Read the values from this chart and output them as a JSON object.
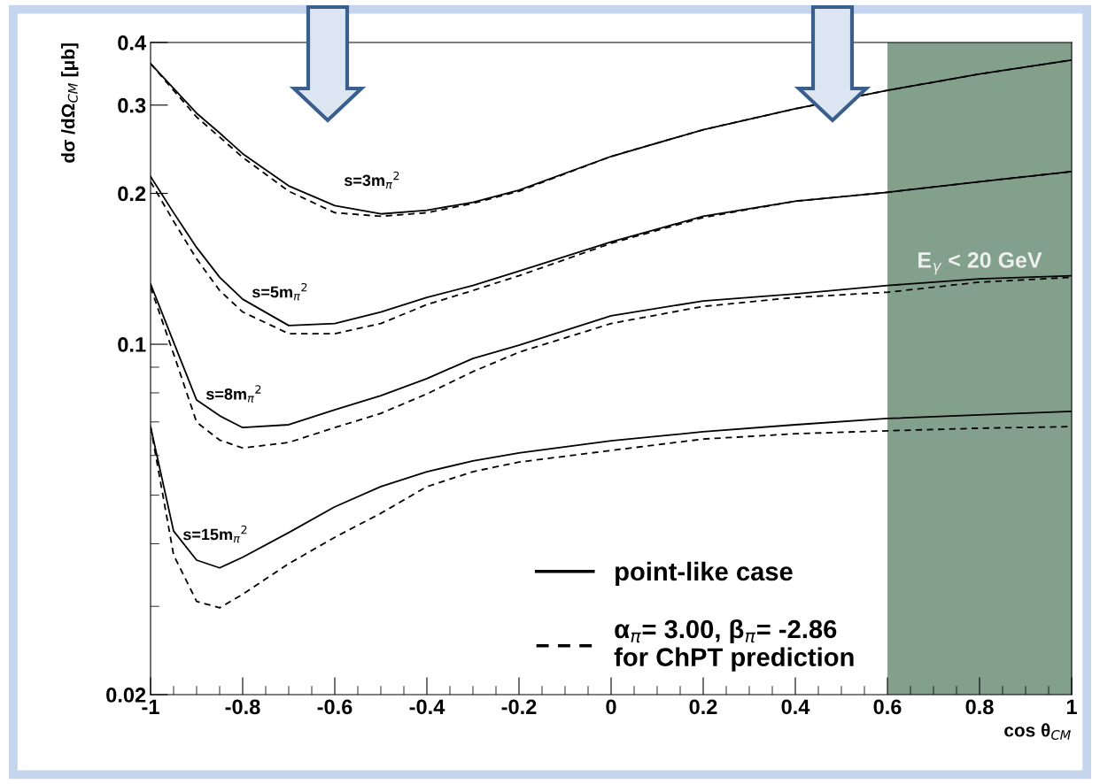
{
  "chart_data": {
    "type": "line",
    "xlabel": "cos θ$_{CM}$",
    "ylabel": "dσ /dΩ$_{CM}$ [μb]",
    "log": "y",
    "xlim": [
      -1,
      1
    ],
    "ylim": [
      0.02,
      0.4
    ],
    "xticks": [
      -1,
      {
        "value": -0.95,
        "label": null
      },
      {
        "value": -0.9,
        "label": null
      },
      {
        "value": -0.85,
        "label": null
      },
      -0.8,
      {
        "value": -0.75,
        "label": null
      },
      {
        "value": -0.7,
        "label": null
      },
      {
        "value": -0.65,
        "label": null
      },
      -0.6,
      {
        "value": -0.55,
        "label": null
      },
      {
        "value": -0.5,
        "label": null
      },
      {
        "value": -0.45,
        "label": null
      },
      -0.4,
      {
        "value": -0.35,
        "label": null
      },
      {
        "value": -0.3,
        "label": null
      },
      {
        "value": -0.25,
        "label": null
      },
      -0.2,
      {
        "value": -0.15,
        "label": null
      },
      {
        "value": -0.1,
        "label": null
      },
      {
        "value": -0.05,
        "label": null
      },
      0,
      {
        "value": 0.05,
        "label": null
      },
      {
        "value": 0.1,
        "label": null
      },
      {
        "value": 0.15,
        "label": null
      },
      0.2,
      {
        "value": 0.25,
        "label": null
      },
      {
        "value": 0.3,
        "label": null
      },
      {
        "value": 0.35,
        "label": null
      },
      0.4,
      {
        "value": 0.45,
        "label": null
      },
      {
        "value": 0.5,
        "label": null
      },
      {
        "value": 0.55,
        "label": null
      },
      0.6,
      {
        "value": 0.65,
        "label": null
      },
      {
        "value": 0.7,
        "label": null
      },
      {
        "value": 0.75,
        "label": null
      },
      0.8,
      {
        "value": 0.85,
        "label": null
      },
      {
        "value": 0.9,
        "label": null
      },
      {
        "value": 0.95,
        "label": null
      },
      1
    ],
    "yticks": [
      0.02,
      {
        "value": 0.03,
        "label": null
      },
      {
        "value": 0.04,
        "label": null
      },
      {
        "value": 0.05,
        "label": null
      },
      {
        "value": 0.06,
        "label": null
      },
      {
        "value": 0.07,
        "label": null
      },
      {
        "value": 0.08,
        "label": null
      },
      {
        "value": 0.09,
        "label": null
      },
      0.1,
      0.2,
      0.3,
      0.4
    ],
    "x": [
      -1,
      -0.95,
      -0.9,
      -0.85,
      -0.8,
      -0.7,
      -0.6,
      -0.5,
      -0.4,
      -0.3,
      -0.2,
      0,
      0.2,
      0.4,
      0.6,
      0.8,
      1
    ],
    "series": [
      {
        "name": "point-like case",
        "color": "#000000",
        "line_style": "solid",
        "values": [
          0.363,
          0.324,
          0.289,
          0.264,
          0.24,
          0.207,
          0.189,
          0.182,
          0.185,
          0.192,
          0.203,
          0.237,
          0.268,
          0.295,
          0.321,
          0.346,
          0.369
        ]
      },
      {
        "name": "α$_{π}$= 3.00, β$_{π}$= -2.86\nfor ChPT prediction",
        "color": "#000000",
        "line_style": "dashed",
        "values": [
          0.363,
          0.321,
          0.284,
          0.259,
          0.236,
          0.202,
          0.183,
          0.18,
          0.183,
          0.191,
          0.202,
          0.237,
          0.268,
          0.295,
          0.321,
          0.346,
          0.369
        ]
      },
      {
        "color": "#000000",
        "line_style": "solid",
        "values": [
          0.216,
          0.183,
          0.156,
          0.136,
          0.123,
          0.109,
          0.11,
          0.116,
          0.124,
          0.131,
          0.14,
          0.16,
          0.18,
          0.193,
          0.201,
          0.211,
          0.221
        ]
      },
      {
        "color": "#000000",
        "line_style": "dashed",
        "values": [
          0.211,
          0.176,
          0.148,
          0.128,
          0.116,
          0.105,
          0.105,
          0.11,
          0.12,
          0.128,
          0.137,
          0.159,
          0.179,
          0.193,
          0.201,
          0.211,
          0.221
        ]
      },
      {
        "color": "#000000",
        "line_style": "solid",
        "values": [
          0.132,
          0.101,
          0.0774,
          0.072,
          0.0682,
          0.0691,
          0.074,
          0.079,
          0.0854,
          0.0937,
          0.0996,
          0.114,
          0.122,
          0.126,
          0.131,
          0.135,
          0.137
        ]
      },
      {
        "color": "#000000",
        "line_style": "dashed",
        "values": [
          0.13,
          0.0957,
          0.0699,
          0.0644,
          0.0621,
          0.0637,
          0.0682,
          0.0728,
          0.0796,
          0.0882,
          0.0964,
          0.11,
          0.119,
          0.124,
          0.127,
          0.133,
          0.136
        ]
      },
      {
        "color": "#000000",
        "line_style": "solid",
        "values": [
          0.0685,
          0.0424,
          0.0371,
          0.0358,
          0.0376,
          0.0421,
          0.0474,
          0.052,
          0.0557,
          0.0585,
          0.0607,
          0.0642,
          0.0669,
          0.0691,
          0.0711,
          0.0723,
          0.0735
        ]
      },
      {
        "color": "#000000",
        "line_style": "dashed",
        "values": [
          0.0685,
          0.038,
          0.0307,
          0.0298,
          0.0317,
          0.0365,
          0.0412,
          0.046,
          0.052,
          0.0557,
          0.0582,
          0.0614,
          0.0647,
          0.0663,
          0.0672,
          0.068,
          0.0685
        ]
      }
    ],
    "bands": [
      {
        "axis": "x",
        "from": 0.6,
        "to": 1,
        "label": "E$_{γ}$ < 20 GeV",
        "color": "#83a08c"
      }
    ],
    "annotations": [
      "s=3m$_{π}$$^{2}$",
      "s=5m$_{π}$$^{2}$",
      "s=8m$_{π}$$^{2}$",
      "s=15m$_{π}$$^{2}$"
    ],
    "legend": "bottom right",
    "grid": false
  }
}
